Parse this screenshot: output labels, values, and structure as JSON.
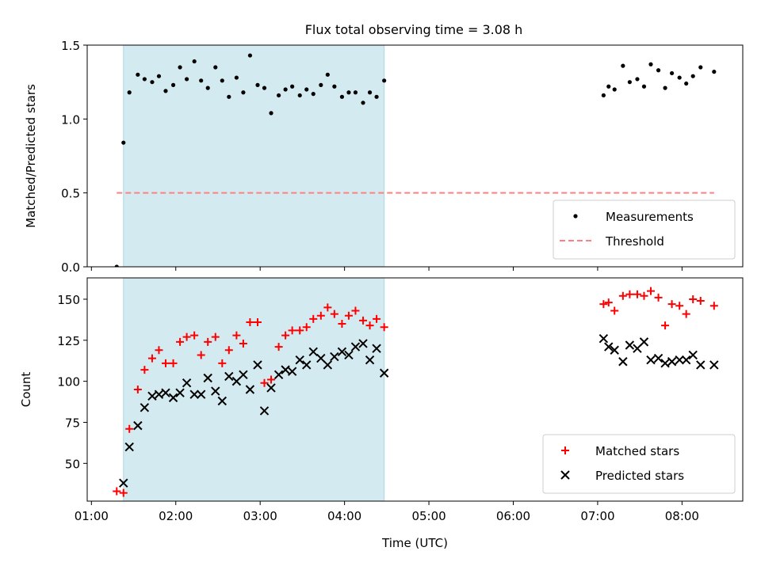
{
  "title": "Flux total observing time = 3.08 h",
  "colors": {
    "span": "#d3eaf0",
    "span_edge": "#add8e6",
    "measurements": "#000000",
    "threshold": "#ff8080",
    "matched": "#ff0000",
    "predicted": "#000000"
  },
  "chart_data": [
    {
      "type": "scatter",
      "panel": "top",
      "ylabel": "Matched/Predicted stars",
      "xlabel": "",
      "xlim": [
        0.95,
        8.72
      ],
      "ylim": [
        0,
        1.5
      ],
      "yticks": [
        0,
        0.5,
        1.0,
        1.5
      ],
      "ytick_labels": [
        "0.0",
        "0.5",
        "1.0",
        "1.5"
      ],
      "highlight_span": [
        1.38,
        4.47
      ],
      "legend_position": "lower-right",
      "threshold": {
        "name": "Threshold",
        "value": 0.5,
        "x_range": [
          1.3,
          8.38
        ]
      },
      "series": [
        {
          "name": "Measurements",
          "x": [
            1.3,
            1.38,
            1.45,
            1.55,
            1.63,
            1.72,
            1.8,
            1.88,
            1.97,
            2.05,
            2.13,
            2.22,
            2.3,
            2.38,
            2.47,
            2.55,
            2.63,
            2.72,
            2.8,
            2.88,
            2.97,
            3.05,
            3.13,
            3.22,
            3.3,
            3.38,
            3.47,
            3.55,
            3.63,
            3.72,
            3.8,
            3.88,
            3.97,
            4.05,
            4.13,
            4.22,
            4.3,
            4.38,
            4.47,
            7.07,
            7.13,
            7.2,
            7.3,
            7.38,
            7.47,
            7.55,
            7.63,
            7.72,
            7.8,
            7.88,
            7.97,
            8.05,
            8.13,
            8.22,
            8.38
          ],
          "y": [
            0.0,
            0.84,
            1.18,
            1.3,
            1.27,
            1.25,
            1.29,
            1.19,
            1.23,
            1.35,
            1.27,
            1.39,
            1.26,
            1.21,
            1.35,
            1.26,
            1.15,
            1.28,
            1.18,
            1.43,
            1.23,
            1.21,
            1.04,
            1.16,
            1.2,
            1.22,
            1.16,
            1.2,
            1.17,
            1.23,
            1.3,
            1.22,
            1.15,
            1.18,
            1.18,
            1.11,
            1.18,
            1.15,
            1.26,
            1.16,
            1.22,
            1.2,
            1.36,
            1.25,
            1.27,
            1.22,
            1.37,
            1.33,
            1.21,
            1.31,
            1.28,
            1.24,
            1.29,
            1.35,
            1.32
          ]
        }
      ]
    },
    {
      "type": "scatter",
      "panel": "bottom",
      "ylabel": "Count",
      "xlabel": "Time (UTC)",
      "xlim": [
        0.95,
        8.72
      ],
      "ylim": [
        27,
        163
      ],
      "yticks": [
        50,
        75,
        100,
        125,
        150
      ],
      "ytick_labels": [
        "50",
        "75",
        "100",
        "125",
        "150"
      ],
      "xticks": [
        1,
        2,
        3,
        4,
        5,
        6,
        7,
        8
      ],
      "xtick_labels": [
        "01:00",
        "02:00",
        "03:00",
        "04:00",
        "05:00",
        "06:00",
        "07:00",
        "08:00"
      ],
      "highlight_span": [
        1.38,
        4.47
      ],
      "legend_position": "lower-right",
      "series": [
        {
          "name": "Matched stars",
          "marker": "plus",
          "x": [
            1.3,
            1.38,
            1.45,
            1.55,
            1.63,
            1.72,
            1.8,
            1.88,
            1.97,
            2.05,
            2.13,
            2.22,
            2.3,
            2.38,
            2.47,
            2.55,
            2.63,
            2.72,
            2.8,
            2.88,
            2.97,
            3.05,
            3.13,
            3.22,
            3.3,
            3.38,
            3.47,
            3.55,
            3.63,
            3.72,
            3.8,
            3.88,
            3.97,
            4.05,
            4.13,
            4.22,
            4.3,
            4.38,
            4.47,
            7.07,
            7.13,
            7.2,
            7.3,
            7.38,
            7.47,
            7.55,
            7.63,
            7.72,
            7.8,
            7.88,
            7.97,
            8.05,
            8.13,
            8.22,
            8.38
          ],
          "y": [
            33,
            32,
            71,
            95,
            107,
            114,
            119,
            111,
            111,
            124,
            127,
            128,
            116,
            124,
            127,
            111,
            119,
            128,
            123,
            136,
            136,
            99,
            101,
            121,
            128,
            131,
            131,
            133,
            138,
            140,
            145,
            141,
            135,
            140,
            143,
            137,
            134,
            138,
            133,
            147,
            148,
            143,
            152,
            153,
            153,
            152,
            155,
            151,
            134,
            147,
            146,
            141,
            150,
            149,
            146
          ]
        },
        {
          "name": "Predicted stars",
          "marker": "x",
          "x": [
            1.38,
            1.45,
            1.55,
            1.63,
            1.72,
            1.8,
            1.88,
            1.97,
            2.05,
            2.13,
            2.22,
            2.3,
            2.38,
            2.47,
            2.55,
            2.63,
            2.72,
            2.8,
            2.88,
            2.97,
            3.05,
            3.13,
            3.22,
            3.3,
            3.38,
            3.47,
            3.55,
            3.63,
            3.72,
            3.8,
            3.88,
            3.97,
            4.05,
            4.13,
            4.22,
            4.3,
            4.38,
            4.47,
            7.07,
            7.13,
            7.2,
            7.3,
            7.38,
            7.47,
            7.55,
            7.63,
            7.72,
            7.8,
            7.88,
            7.97,
            8.05,
            8.13,
            8.22,
            8.38
          ],
          "y": [
            38,
            60,
            73,
            84,
            91,
            92,
            93,
            90,
            93,
            99,
            92,
            92,
            102,
            94,
            88,
            103,
            100,
            104,
            95,
            110,
            82,
            96,
            104,
            107,
            106,
            113,
            110,
            118,
            114,
            110,
            115,
            118,
            116,
            121,
            123,
            113,
            120,
            105,
            126,
            121,
            119,
            112,
            122,
            120,
            124,
            113,
            114,
            111,
            112,
            113,
            113,
            116,
            110,
            110
          ]
        }
      ]
    }
  ]
}
